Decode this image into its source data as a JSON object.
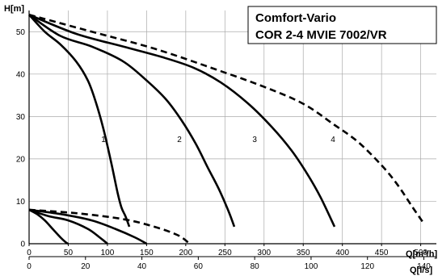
{
  "chart_data": {
    "type": "line",
    "title": [
      "Comfort-Vario",
      "COR 2-4 MVIE 7002/VR"
    ],
    "ylabel": "H[m]",
    "xlabel_primary": "Q[m³/h]",
    "xlabel_secondary": "Q[l/s]",
    "ylim": [
      0,
      55
    ],
    "xlim_m3h": [
      0,
      520
    ],
    "xlim_ls": [
      0,
      144.44
    ],
    "grid": true,
    "y_ticks": [
      0,
      10,
      20,
      30,
      40,
      50
    ],
    "x_ticks_m3h": [
      0,
      50,
      100,
      150,
      200,
      250,
      300,
      350,
      400,
      450,
      500
    ],
    "x_ticks_ls": [
      0,
      20,
      40,
      60,
      80,
      100,
      120,
      140
    ],
    "series": [
      {
        "name": "1",
        "style": "solid",
        "label_at": [
          95,
          24
        ],
        "x": [
          0,
          20,
          40,
          60,
          75,
          85,
          95,
          105,
          113,
          118,
          123,
          128
        ],
        "y": [
          54,
          50,
          47,
          43,
          38.5,
          33.5,
          27,
          19,
          12,
          8.5,
          6.5,
          4
        ]
      },
      {
        "name": "2",
        "style": "solid",
        "label_at": [
          192,
          24
        ],
        "x": [
          0,
          40,
          80,
          120,
          150,
          175,
          195,
          213,
          228,
          242,
          255,
          262
        ],
        "y": [
          54,
          49,
          46.5,
          43,
          38.5,
          34,
          29,
          23.5,
          18,
          13,
          7.5,
          4
        ]
      },
      {
        "name": "3",
        "style": "solid",
        "label_at": [
          288,
          24
        ],
        "x": [
          0,
          60,
          120,
          170,
          210,
          245,
          280,
          310,
          335,
          355,
          372,
          390
        ],
        "y": [
          54,
          49.5,
          46.5,
          44,
          41.5,
          38,
          33,
          27.5,
          22,
          16.5,
          11,
          4
        ]
      },
      {
        "name": "4",
        "style": "dashed",
        "label_at": [
          388,
          24
        ],
        "x": [
          0,
          80,
          160,
          240,
          300,
          350,
          390,
          420,
          450,
          470,
          490,
          505
        ],
        "y": [
          54,
          50,
          46,
          41,
          37,
          33,
          28,
          24,
          18.5,
          14,
          8.5,
          4.5
        ]
      },
      {
        "name": "",
        "style": "solid",
        "x": [
          0,
          10,
          20,
          30,
          40,
          47,
          50
        ],
        "y": [
          8,
          7,
          5.5,
          3.5,
          1.5,
          0.3,
          0
        ]
      },
      {
        "name": "",
        "style": "solid",
        "x": [
          0,
          25,
          50,
          75,
          90,
          100
        ],
        "y": [
          8,
          6.5,
          5.5,
          3.5,
          1.5,
          0
        ]
      },
      {
        "name": "",
        "style": "solid",
        "x": [
          0,
          40,
          80,
          110,
          135,
          150
        ],
        "y": [
          8,
          7,
          5.5,
          3.5,
          1.5,
          0
        ]
      },
      {
        "name": "",
        "style": "dashed",
        "x": [
          0,
          60,
          120,
          160,
          190,
          205
        ],
        "y": [
          8,
          7.2,
          5.8,
          4,
          2,
          0
        ]
      }
    ]
  }
}
